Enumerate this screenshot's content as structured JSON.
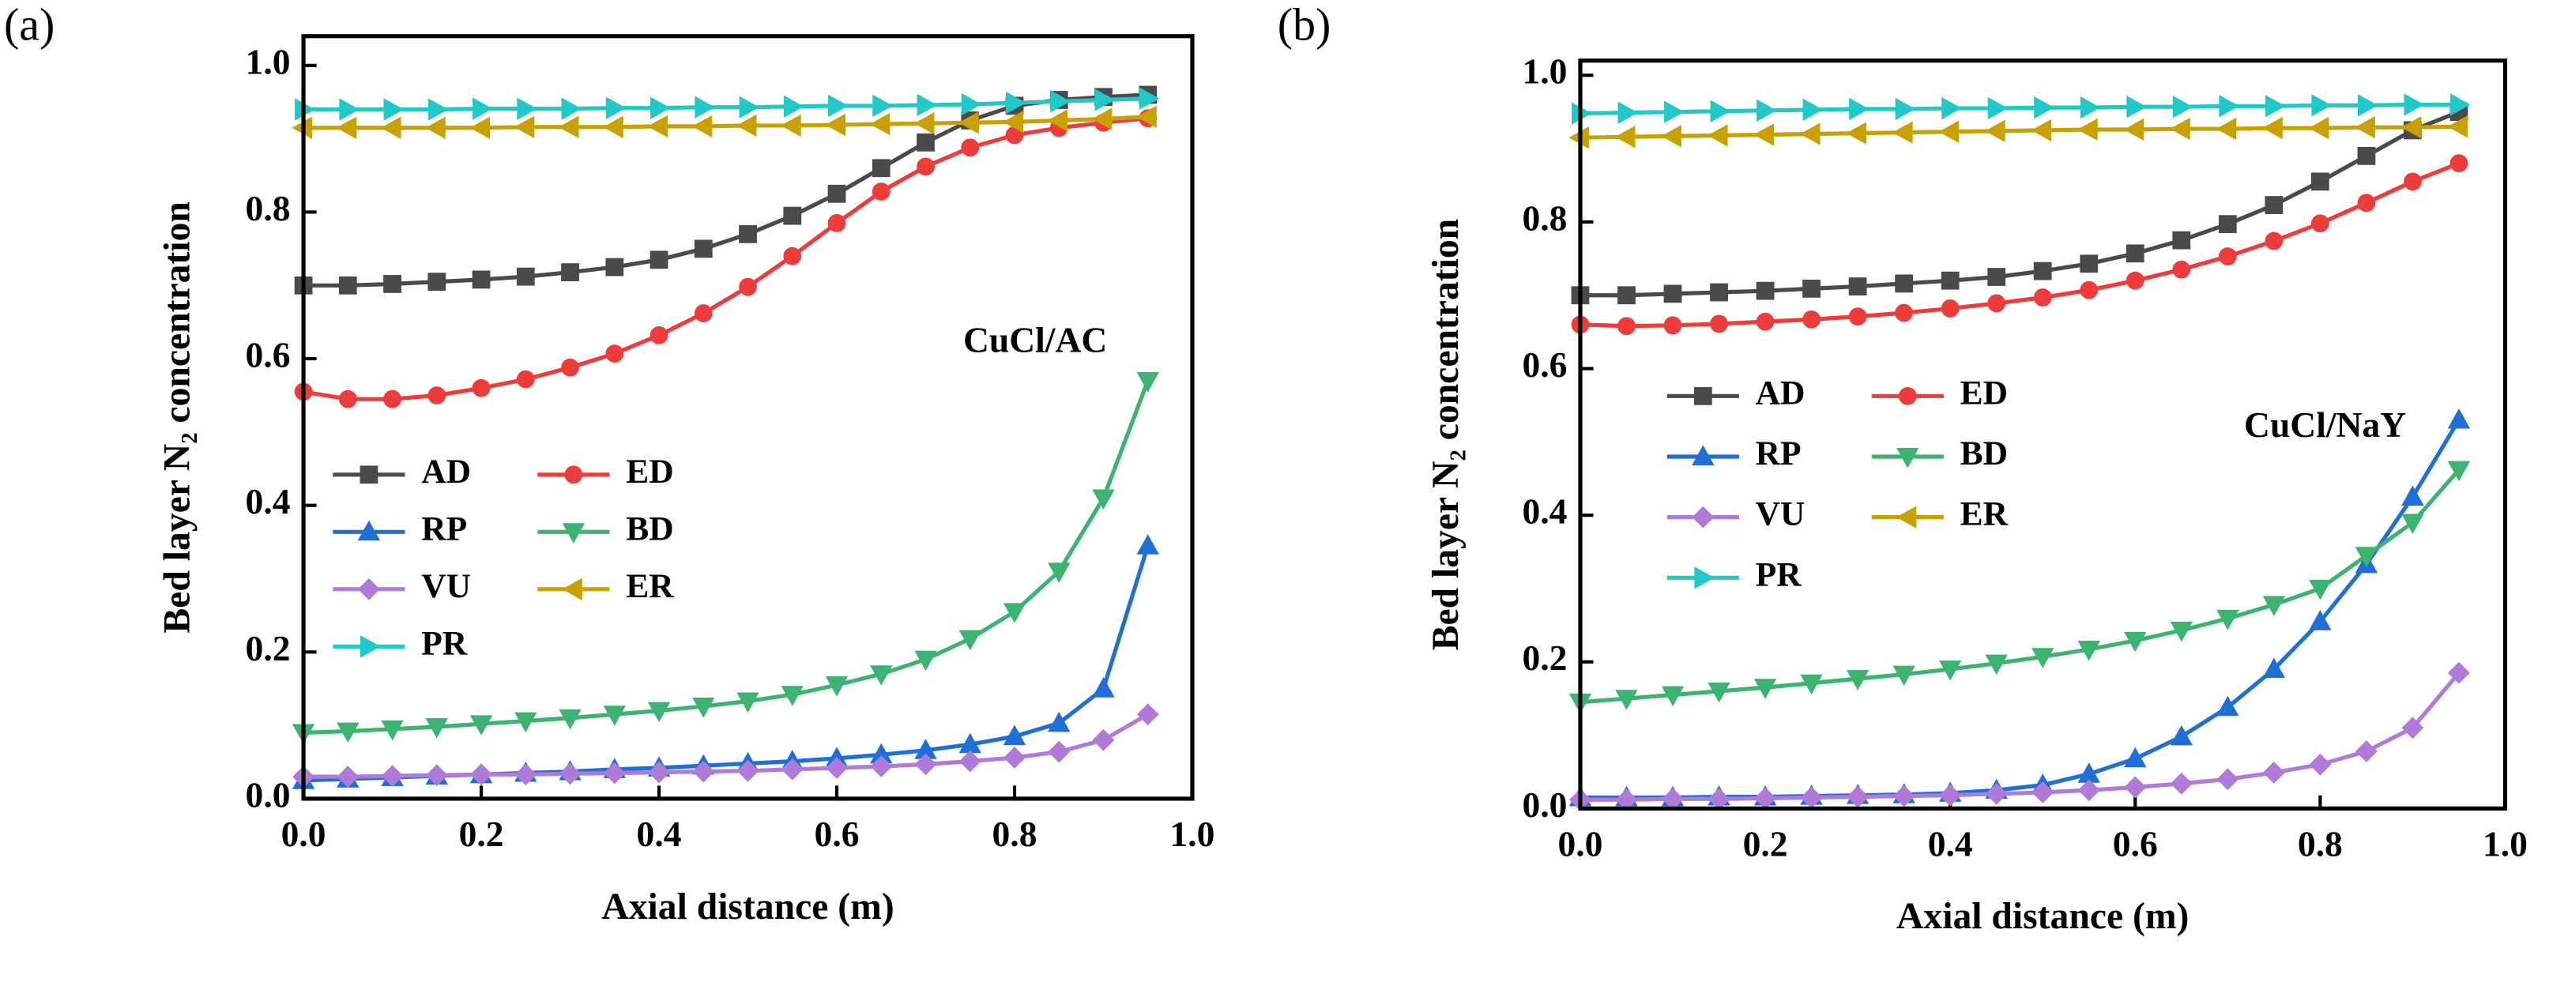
{
  "chart_data": [
    {
      "type": "line",
      "panel": "(a)",
      "annotation": "CuCl/AC",
      "xlabel": "Axial distance (m)",
      "ylabel": "Bed layer N₂ concentration",
      "x": [
        0,
        0.05,
        0.1,
        0.15,
        0.2,
        0.25,
        0.3,
        0.35,
        0.4,
        0.45,
        0.5,
        0.55,
        0.6,
        0.65,
        0.7,
        0.75,
        0.8,
        0.85,
        0.9,
        0.95
      ],
      "xlim": [
        0,
        1
      ],
      "ylim": [
        0,
        1.04
      ],
      "xticks": [
        {
          "value": 0,
          "label": "0.0"
        },
        0.2,
        0.4,
        0.6,
        0.8,
        {
          "value": 1,
          "label": "1.0"
        }
      ],
      "yticks": [
        {
          "value": 0,
          "label": "0.0"
        },
        0.2,
        0.4,
        0.6,
        0.8,
        {
          "value": 1,
          "label": "1.0"
        }
      ],
      "series": [
        {
          "name": "AD",
          "color": "#4a4a4a",
          "marker": "square",
          "values": [
            0.7,
            0.7,
            0.702,
            0.705,
            0.708,
            0.712,
            0.718,
            0.725,
            0.735,
            0.75,
            0.77,
            0.795,
            0.825,
            0.86,
            0.895,
            0.925,
            0.945,
            0.953,
            0.957,
            0.96
          ]
        },
        {
          "name": "ED",
          "color": "#ee3b3b",
          "marker": "circle",
          "values": [
            0.555,
            0.545,
            0.545,
            0.55,
            0.56,
            0.572,
            0.588,
            0.607,
            0.632,
            0.662,
            0.698,
            0.74,
            0.785,
            0.828,
            0.862,
            0.888,
            0.905,
            0.915,
            0.922,
            0.928
          ]
        },
        {
          "name": "RP",
          "color": "#1f6fd6",
          "marker": "up",
          "values": [
            0.025,
            0.027,
            0.029,
            0.031,
            0.033,
            0.035,
            0.037,
            0.04,
            0.042,
            0.045,
            0.048,
            0.051,
            0.055,
            0.06,
            0.066,
            0.074,
            0.085,
            0.103,
            0.15,
            0.345
          ]
        },
        {
          "name": "BD",
          "color": "#3cb371",
          "marker": "down",
          "values": [
            0.09,
            0.092,
            0.095,
            0.098,
            0.102,
            0.106,
            0.11,
            0.115,
            0.12,
            0.126,
            0.133,
            0.142,
            0.155,
            0.17,
            0.19,
            0.218,
            0.255,
            0.31,
            0.41,
            0.57
          ]
        },
        {
          "name": "VU",
          "color": "#b07ad8",
          "marker": "diamond",
          "values": [
            0.03,
            0.03,
            0.031,
            0.032,
            0.033,
            0.033,
            0.034,
            0.035,
            0.036,
            0.037,
            0.038,
            0.04,
            0.042,
            0.044,
            0.047,
            0.051,
            0.056,
            0.064,
            0.08,
            0.115
          ]
        },
        {
          "name": "ER",
          "color": "#c8a000",
          "marker": "left",
          "values": [
            0.915,
            0.915,
            0.915,
            0.915,
            0.915,
            0.916,
            0.916,
            0.916,
            0.917,
            0.917,
            0.918,
            0.918,
            0.919,
            0.92,
            0.921,
            0.922,
            0.923,
            0.925,
            0.927,
            0.93
          ]
        },
        {
          "name": "PR",
          "color": "#20c8c8",
          "marker": "right",
          "values": [
            0.94,
            0.94,
            0.94,
            0.94,
            0.941,
            0.941,
            0.941,
            0.942,
            0.942,
            0.943,
            0.943,
            0.944,
            0.945,
            0.945,
            0.946,
            0.947,
            0.949,
            0.951,
            0.953,
            0.955
          ]
        }
      ]
    },
    {
      "type": "line",
      "panel": "(b)",
      "annotation": "CuCl/NaY",
      "xlabel": "Axial distance (m)",
      "ylabel": "Bed layer N₂ concentration",
      "x": [
        0,
        0.05,
        0.1,
        0.15,
        0.2,
        0.25,
        0.3,
        0.35,
        0.4,
        0.45,
        0.5,
        0.55,
        0.6,
        0.65,
        0.7,
        0.75,
        0.8,
        0.85,
        0.9,
        0.95
      ],
      "xlim": [
        0,
        1
      ],
      "ylim": [
        0,
        1.02
      ],
      "xticks": [
        {
          "value": 0,
          "label": "0.0"
        },
        0.2,
        0.4,
        0.6,
        0.8,
        {
          "value": 1,
          "label": "1.0"
        }
      ],
      "yticks": [
        {
          "value": 0,
          "label": "0.0"
        },
        0.2,
        0.4,
        0.6,
        0.8,
        {
          "value": 1,
          "label": "1.0"
        }
      ],
      "series": [
        {
          "name": "AD",
          "color": "#4a4a4a",
          "marker": "square",
          "values": [
            0.7,
            0.7,
            0.702,
            0.704,
            0.706,
            0.709,
            0.712,
            0.716,
            0.72,
            0.725,
            0.733,
            0.743,
            0.757,
            0.775,
            0.797,
            0.823,
            0.855,
            0.89,
            0.925,
            0.95
          ]
        },
        {
          "name": "ED",
          "color": "#ee3b3b",
          "marker": "circle",
          "values": [
            0.66,
            0.658,
            0.659,
            0.661,
            0.664,
            0.667,
            0.671,
            0.676,
            0.682,
            0.689,
            0.697,
            0.707,
            0.72,
            0.735,
            0.753,
            0.774,
            0.798,
            0.826,
            0.855,
            0.88
          ]
        },
        {
          "name": "RP",
          "color": "#1f6fd6",
          "marker": "up",
          "values": [
            0.015,
            0.015,
            0.015,
            0.016,
            0.016,
            0.017,
            0.018,
            0.019,
            0.021,
            0.025,
            0.032,
            0.047,
            0.068,
            0.098,
            0.138,
            0.19,
            0.255,
            0.333,
            0.425,
            0.53
          ]
        },
        {
          "name": "BD",
          "color": "#3cb371",
          "marker": "down",
          "values": [
            0.145,
            0.15,
            0.155,
            0.16,
            0.165,
            0.171,
            0.177,
            0.183,
            0.19,
            0.198,
            0.207,
            0.217,
            0.229,
            0.243,
            0.259,
            0.278,
            0.3,
            0.345,
            0.39,
            0.462
          ]
        },
        {
          "name": "VU",
          "color": "#b07ad8",
          "marker": "diamond",
          "values": [
            0.012,
            0.012,
            0.013,
            0.013,
            0.014,
            0.015,
            0.016,
            0.017,
            0.018,
            0.02,
            0.022,
            0.025,
            0.029,
            0.034,
            0.04,
            0.049,
            0.06,
            0.078,
            0.11,
            0.185
          ]
        },
        {
          "name": "ER",
          "color": "#c8a000",
          "marker": "left",
          "values": [
            0.915,
            0.916,
            0.917,
            0.918,
            0.919,
            0.92,
            0.921,
            0.922,
            0.923,
            0.924,
            0.925,
            0.926,
            0.926,
            0.927,
            0.927,
            0.928,
            0.928,
            0.929,
            0.929,
            0.93
          ]
        },
        {
          "name": "PR",
          "color": "#20c8c8",
          "marker": "right",
          "values": [
            0.948,
            0.949,
            0.95,
            0.951,
            0.952,
            0.953,
            0.954,
            0.954,
            0.955,
            0.955,
            0.956,
            0.956,
            0.957,
            0.957,
            0.958,
            0.958,
            0.959,
            0.959,
            0.96,
            0.96
          ]
        }
      ]
    }
  ]
}
